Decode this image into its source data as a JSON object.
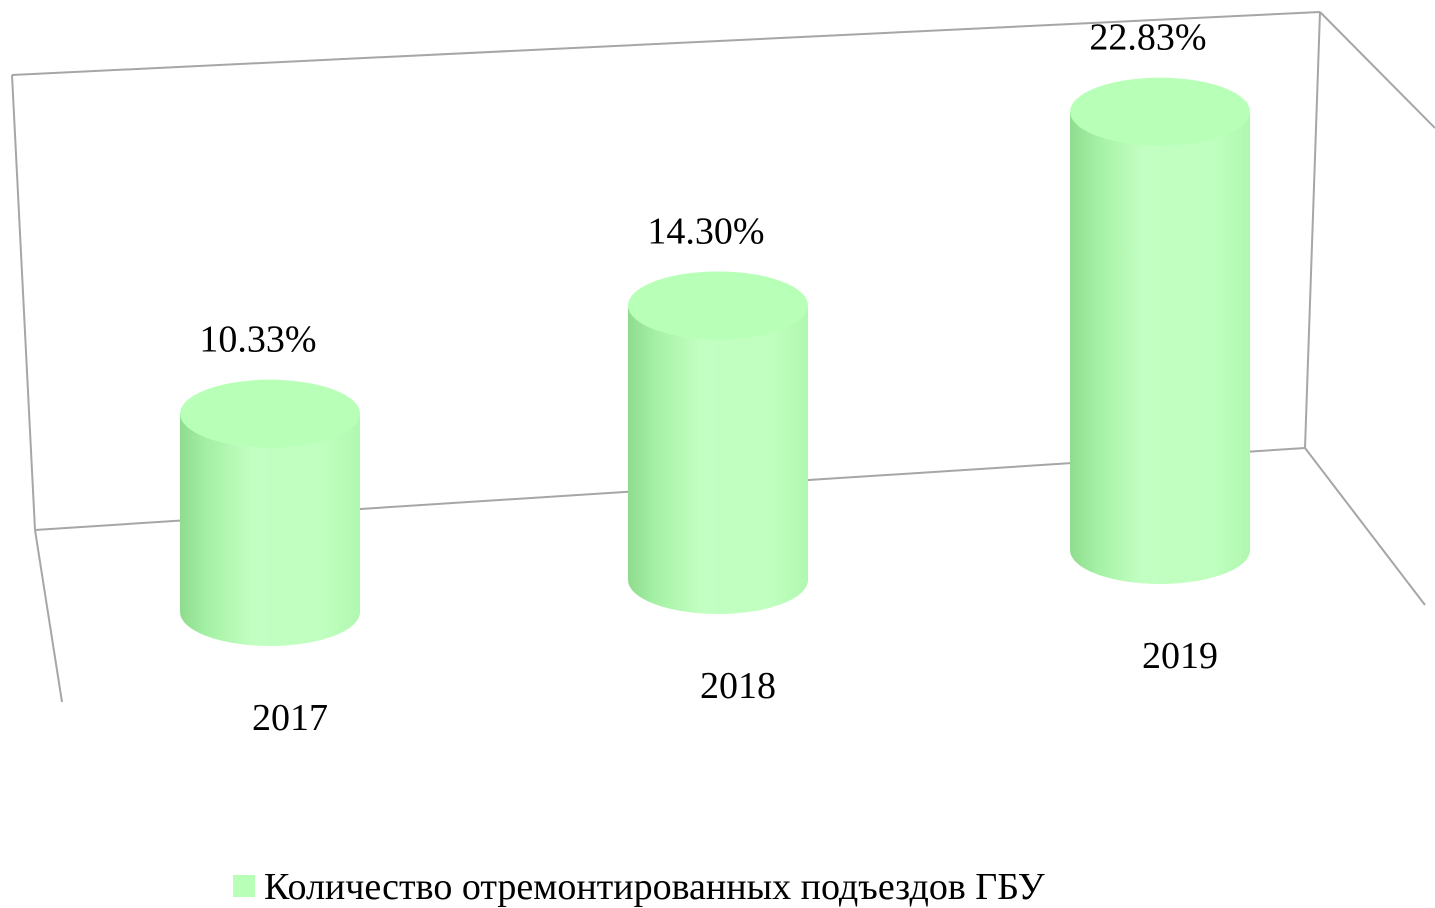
{
  "chart_data": {
    "type": "bar3d",
    "categories": [
      "2017",
      "2018",
      "2019"
    ],
    "series": [
      {
        "name": "Количество отремонтированных подъездов ГБУ",
        "color": "#b8ffb8",
        "values": [
          10.33,
          14.3,
          22.83
        ],
        "value_labels": [
          "10.33%",
          "14.30%",
          "22.83%"
        ]
      }
    ]
  }
}
